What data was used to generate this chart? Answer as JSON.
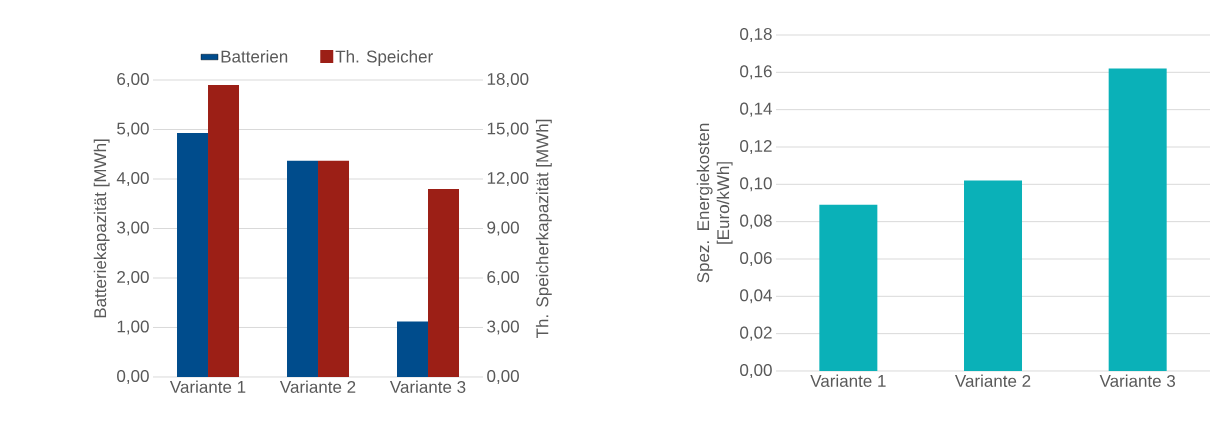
{
  "chart_data": [
    {
      "type": "bar",
      "categories": [
        "Variante 1",
        "Variante 2",
        "Variante 3"
      ],
      "series": [
        {
          "name": "Batterien",
          "color": "#004c8c",
          "values": [
            4.93,
            4.37,
            1.12
          ]
        },
        {
          "name": "Th. Speicher",
          "color": "#9c1f16",
          "axis": "y2",
          "values": [
            17.7,
            13.1,
            11.4
          ]
        }
      ],
      "ylabel": "Batteriekapazität [MWh]",
      "y2label": "Th. Speicherkapazität [MWh]",
      "ylim": [
        0,
        6
      ],
      "yticks": [
        {
          "value": 0,
          "label": "0,00"
        },
        {
          "value": 1,
          "label": "1,00"
        },
        {
          "value": 2,
          "label": "2,00"
        },
        {
          "value": 3,
          "label": "3,00"
        },
        {
          "value": 4,
          "label": "4,00"
        },
        {
          "value": 5,
          "label": "5,00"
        },
        {
          "value": 6,
          "label": "6,00"
        }
      ],
      "y2lim": [
        0,
        18
      ],
      "y2ticks": [
        {
          "value": 0,
          "label": "0,00"
        },
        {
          "value": 3,
          "label": "3,00"
        },
        {
          "value": 6,
          "label": "6,00"
        },
        {
          "value": 9,
          "label": "9,00"
        },
        {
          "value": 12,
          "label": "12,00"
        },
        {
          "value": 15,
          "label": "15,00"
        },
        {
          "value": 18,
          "label": "18,00"
        }
      ],
      "grid": "y",
      "legend": "top"
    },
    {
      "type": "bar",
      "categories": [
        "Variante 1",
        "Variante 2",
        "Variante 3"
      ],
      "values": [
        0.089,
        0.102,
        0.162
      ],
      "color": "#0ab1b8",
      "ylabel": "Spez. Energiekosten [Euro/kWh]",
      "ylim": [
        0,
        0.18
      ],
      "yticks": [
        {
          "value": 0,
          "label": "0,00"
        },
        {
          "value": 0.02,
          "label": "0,02"
        },
        {
          "value": 0.04,
          "label": "0,04"
        },
        {
          "value": 0.06,
          "label": "0,06"
        },
        {
          "value": 0.08,
          "label": "0,08"
        },
        {
          "value": 0.1,
          "label": "0,10"
        },
        {
          "value": 0.12,
          "label": "0,12"
        },
        {
          "value": 0.14,
          "label": "0,14"
        },
        {
          "value": 0.16,
          "label": "0,16"
        },
        {
          "value": 0.18,
          "label": "0,18"
        }
      ],
      "grid": "y"
    }
  ]
}
